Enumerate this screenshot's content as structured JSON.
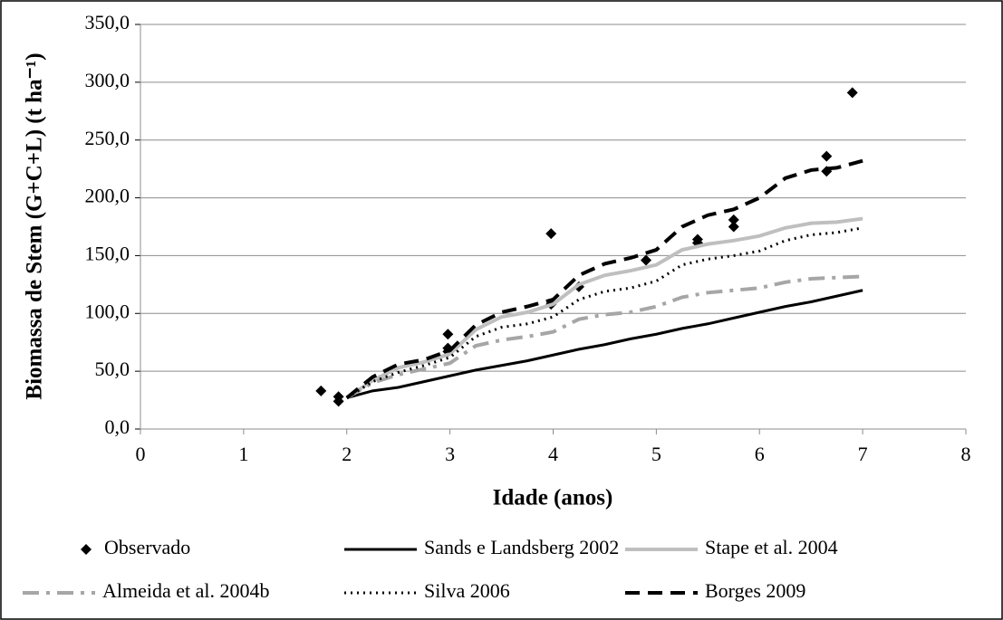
{
  "chart_data": {
    "type": "line",
    "xlabel": "Idade (anos)",
    "ylabel": "Biomassa de Stem (G+C+L) (t ha⁻¹)",
    "xlim": [
      0,
      8
    ],
    "xticks": [
      0,
      1,
      2,
      3,
      4,
      5,
      6,
      7,
      8
    ],
    "ylim": [
      0,
      350
    ],
    "yticks": [
      {
        "value": 0,
        "label": "0,0"
      },
      {
        "value": 50,
        "label": "50,0"
      },
      {
        "value": 100,
        "label": "100,0"
      },
      {
        "value": 150,
        "label": "150,0"
      },
      {
        "value": 200,
        "label": "200,0"
      },
      {
        "value": 250,
        "label": "250,0"
      },
      {
        "value": 300,
        "label": "300,0"
      },
      {
        "value": 350,
        "label": "350,0"
      }
    ],
    "grid": true,
    "legend": "bottom",
    "series": [
      {
        "name": "Observado",
        "kind": "scatter",
        "color": "#000000",
        "x": [
          1.75,
          1.92,
          1.92,
          2.98,
          2.98,
          2.98,
          3.98,
          3.98,
          4.25,
          4.9,
          5.4,
          5.4,
          5.75,
          5.75,
          6.65,
          6.65,
          6.9
        ],
        "values": [
          33,
          28,
          24,
          82,
          70,
          67,
          169,
          108,
          123,
          146,
          164,
          161,
          181,
          175,
          236,
          223,
          291
        ]
      },
      {
        "name": "Sands e Landsberg 2002",
        "kind": "line",
        "dash": "solid",
        "color": "#000000",
        "x": [
          2,
          2.25,
          2.5,
          2.75,
          3,
          3.25,
          3.5,
          3.75,
          4,
          4.25,
          4.5,
          4.75,
          5,
          5.25,
          5.5,
          5.75,
          6,
          6.25,
          6.5,
          6.75,
          7
        ],
        "values": [
          27,
          33,
          36,
          41,
          46,
          51,
          55,
          59,
          64,
          69,
          73,
          78,
          82,
          87,
          91,
          96,
          101,
          106,
          110,
          115,
          120
        ]
      },
      {
        "name": "Stape et al. 2004",
        "kind": "line",
        "dash": "solid",
        "color": "#bfbfbf",
        "x": [
          2,
          2.25,
          2.5,
          2.75,
          3,
          3.25,
          3.5,
          3.75,
          4,
          4.25,
          4.5,
          4.75,
          5,
          5.25,
          5.5,
          5.75,
          6,
          6.25,
          6.5,
          6.75,
          7
        ],
        "values": [
          27,
          42,
          53,
          58,
          65,
          86,
          97,
          101,
          108,
          125,
          133,
          137,
          142,
          155,
          160,
          163,
          167,
          174,
          178,
          179,
          182
        ]
      },
      {
        "name": "Almeida et al. 2004b",
        "kind": "line",
        "dash": "dashdot",
        "color": "#a6a6a6",
        "x": [
          2,
          2.25,
          2.5,
          2.75,
          3,
          3.25,
          3.5,
          3.75,
          4,
          4.25,
          4.5,
          4.75,
          5,
          5.25,
          5.5,
          5.75,
          6,
          6.25,
          6.5,
          6.75,
          7
        ],
        "values": [
          27,
          40,
          47,
          52,
          57,
          72,
          77,
          80,
          84,
          95,
          99,
          101,
          106,
          114,
          118,
          120,
          122,
          127,
          130,
          131,
          132
        ]
      },
      {
        "name": "Silva 2006",
        "kind": "line",
        "dash": "dot",
        "color": "#000000",
        "x": [
          2,
          2.25,
          2.5,
          2.75,
          3,
          3.25,
          3.5,
          3.75,
          4,
          4.25,
          4.5,
          4.75,
          5,
          5.25,
          5.5,
          5.75,
          6,
          6.25,
          6.5,
          6.75,
          7
        ],
        "values": [
          27,
          41,
          49,
          55,
          62,
          80,
          88,
          91,
          97,
          112,
          119,
          122,
          128,
          142,
          147,
          150,
          154,
          163,
          168,
          170,
          174
        ]
      },
      {
        "name": "Borges 2009",
        "kind": "line",
        "dash": "dash",
        "color": "#000000",
        "x": [
          2,
          2.25,
          2.5,
          2.75,
          3,
          3.25,
          3.5,
          3.75,
          4,
          4.25,
          4.5,
          4.75,
          5,
          5.25,
          5.5,
          5.75,
          6,
          6.25,
          6.5,
          6.75,
          7
        ],
        "values": [
          27,
          45,
          56,
          60,
          68,
          90,
          101,
          106,
          112,
          133,
          143,
          148,
          155,
          175,
          185,
          190,
          200,
          217,
          224,
          226,
          232
        ]
      }
    ]
  }
}
